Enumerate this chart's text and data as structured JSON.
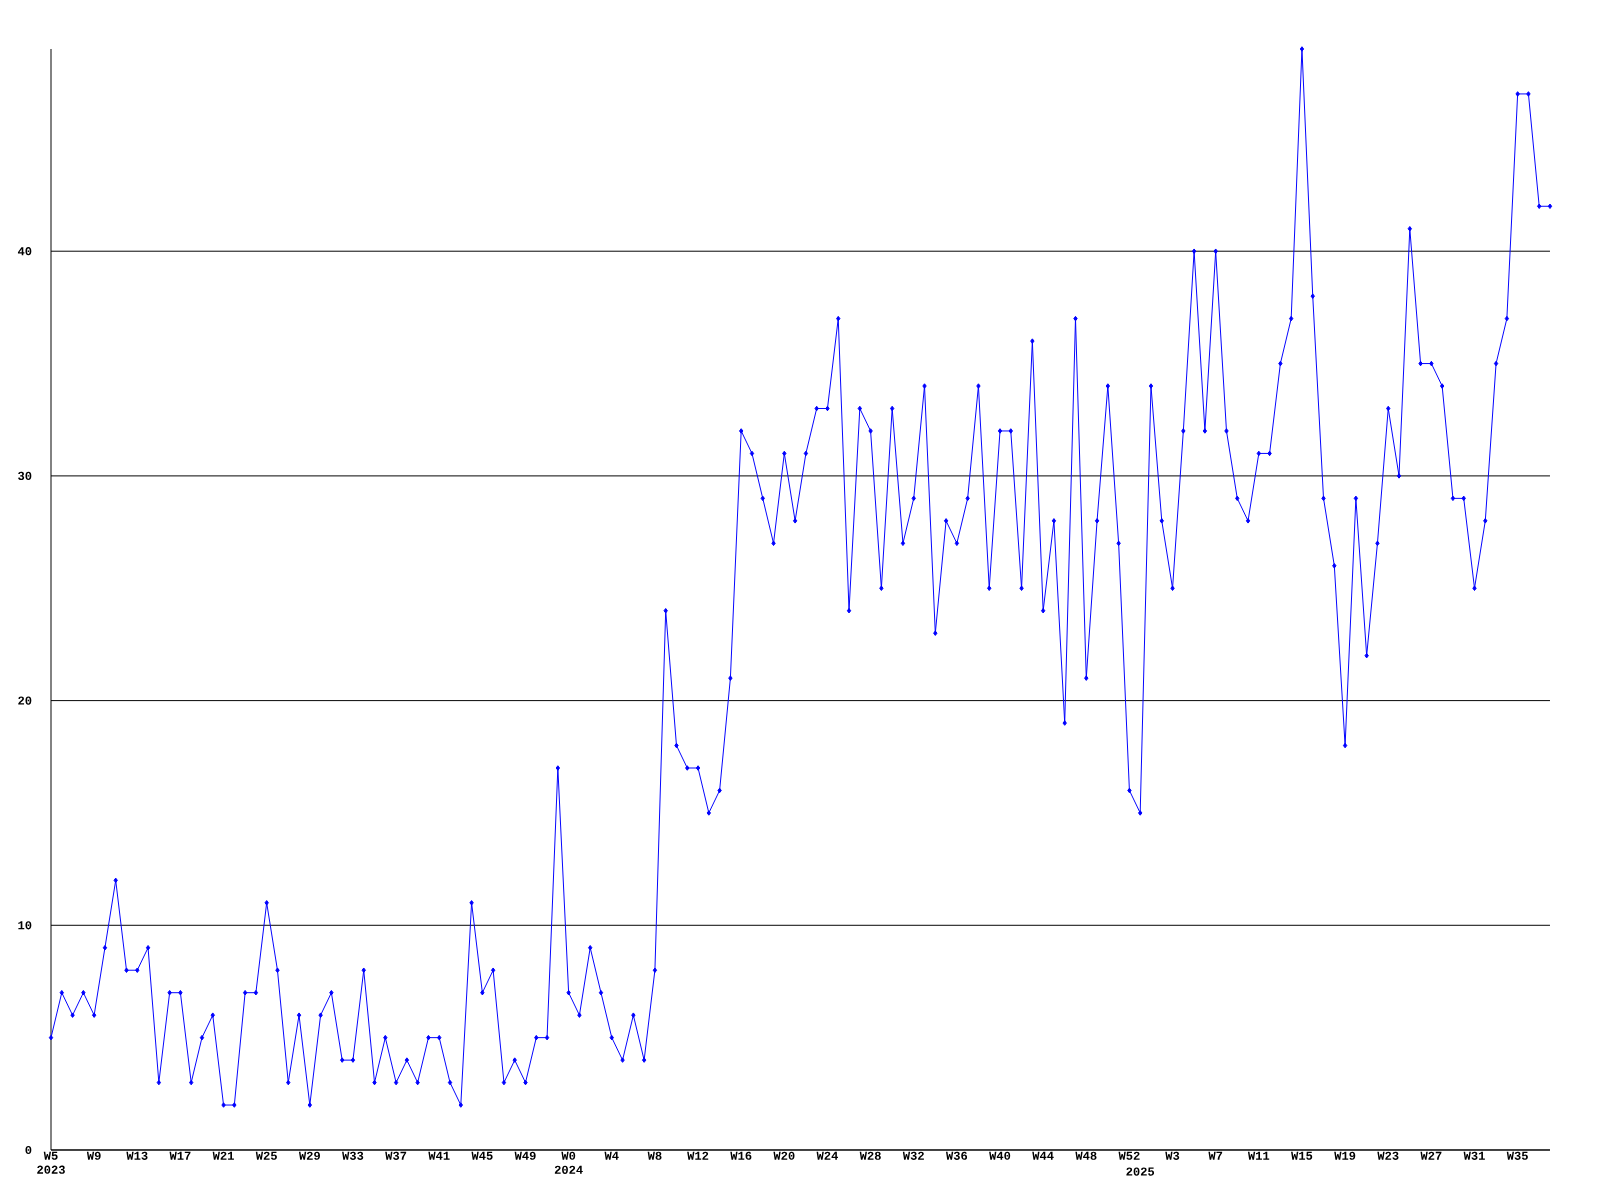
{
  "chart_data": {
    "type": "line",
    "categories": [
      "W5 2023",
      null,
      null,
      null,
      "W9",
      null,
      null,
      null,
      "W13",
      null,
      null,
      null,
      "W17",
      null,
      null,
      null,
      "W21",
      null,
      null,
      null,
      "W25",
      null,
      null,
      null,
      "W29",
      null,
      null,
      null,
      "W33",
      null,
      null,
      null,
      "W37",
      null,
      null,
      null,
      "W41",
      null,
      null,
      null,
      "W45",
      null,
      null,
      null,
      "W49",
      null,
      null,
      null,
      "W0 2024",
      null,
      null,
      null,
      "W4",
      null,
      null,
      null,
      "W8",
      null,
      null,
      null,
      "W12",
      null,
      null,
      null,
      "W16",
      null,
      null,
      null,
      "W20",
      null,
      null,
      null,
      "W24",
      null,
      null,
      null,
      "W28",
      null,
      null,
      null,
      "W32",
      null,
      null,
      null,
      "W36",
      null,
      null,
      null,
      "W40",
      null,
      null,
      null,
      "W44",
      null,
      null,
      null,
      "W48",
      null,
      null,
      null,
      "W52",
      "2025",
      null,
      null,
      "W3",
      null,
      null,
      null,
      "W7",
      null,
      null,
      null,
      "W11",
      null,
      null,
      null,
      "W15",
      null,
      null,
      null,
      "W19",
      null,
      null,
      null,
      "W23",
      null,
      null,
      null,
      "W27",
      null,
      null,
      null,
      "W31",
      null,
      null,
      null,
      "W35",
      null,
      null,
      null
    ],
    "values": [
      5,
      7,
      6,
      7,
      6,
      9,
      12,
      8,
      8,
      9,
      3,
      7,
      7,
      3,
      5,
      6,
      2,
      2,
      7,
      7,
      11,
      8,
      3,
      6,
      2,
      6,
      7,
      4,
      4,
      8,
      3,
      5,
      3,
      4,
      3,
      5,
      5,
      3,
      2,
      11,
      7,
      8,
      3,
      4,
      3,
      5,
      5,
      17,
      7,
      6,
      9,
      7,
      5,
      4,
      6,
      4,
      8,
      24,
      18,
      17,
      17,
      15,
      16,
      21,
      32,
      31,
      29,
      27,
      31,
      28,
      31,
      33,
      33,
      37,
      24,
      33,
      32,
      25,
      33,
      27,
      29,
      34,
      23,
      28,
      27,
      29,
      34,
      25,
      32,
      32,
      25,
      36,
      24,
      28,
      19,
      37,
      21,
      28,
      34,
      27,
      16,
      15,
      34,
      28,
      25,
      32,
      40,
      32,
      40,
      32,
      29,
      28,
      31,
      31,
      35,
      37,
      49,
      38,
      29,
      26,
      18,
      29,
      22,
      27,
      33,
      30,
      41,
      35,
      35,
      34,
      29,
      29,
      25,
      28,
      35,
      37,
      47,
      47,
      42,
      42
    ],
    "color": "#0000ff",
    "ylim": [
      0,
      49
    ],
    "yticks": [
      0,
      10,
      20,
      30,
      40
    ],
    "grid": "y",
    "marker": "diamond",
    "line_style": "solid"
  }
}
